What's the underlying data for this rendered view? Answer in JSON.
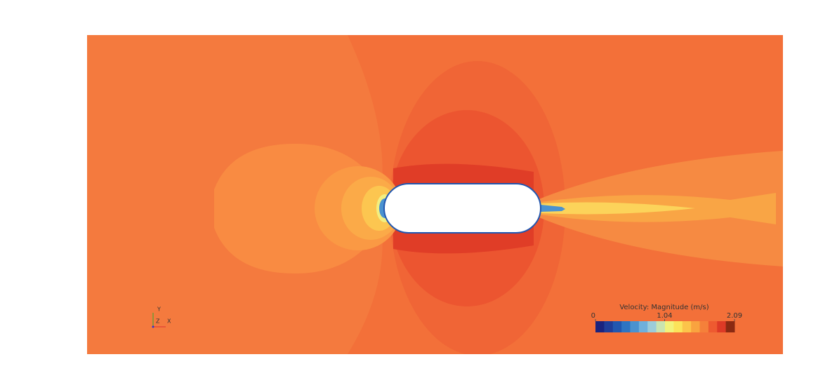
{
  "colorbar": {
    "title": "Velocity: Magnitude (m/s)",
    "lim": [
      0,
      2.09
    ],
    "ticks": [
      0,
      1.04,
      2.09
    ],
    "colors": [
      "#1a237e",
      "#1f3d99",
      "#2157b0",
      "#2e74c2",
      "#4a92d0",
      "#6fb0dc",
      "#9cccd9",
      "#c9e4b0",
      "#f2f27a",
      "#fbe35a",
      "#fcc44a",
      "#f9a33f",
      "#f5803a",
      "#ee5a30",
      "#dd3a26",
      "#8a2a12"
    ]
  },
  "triad": {
    "y": "Y",
    "z": "Z",
    "x": "X"
  }
}
